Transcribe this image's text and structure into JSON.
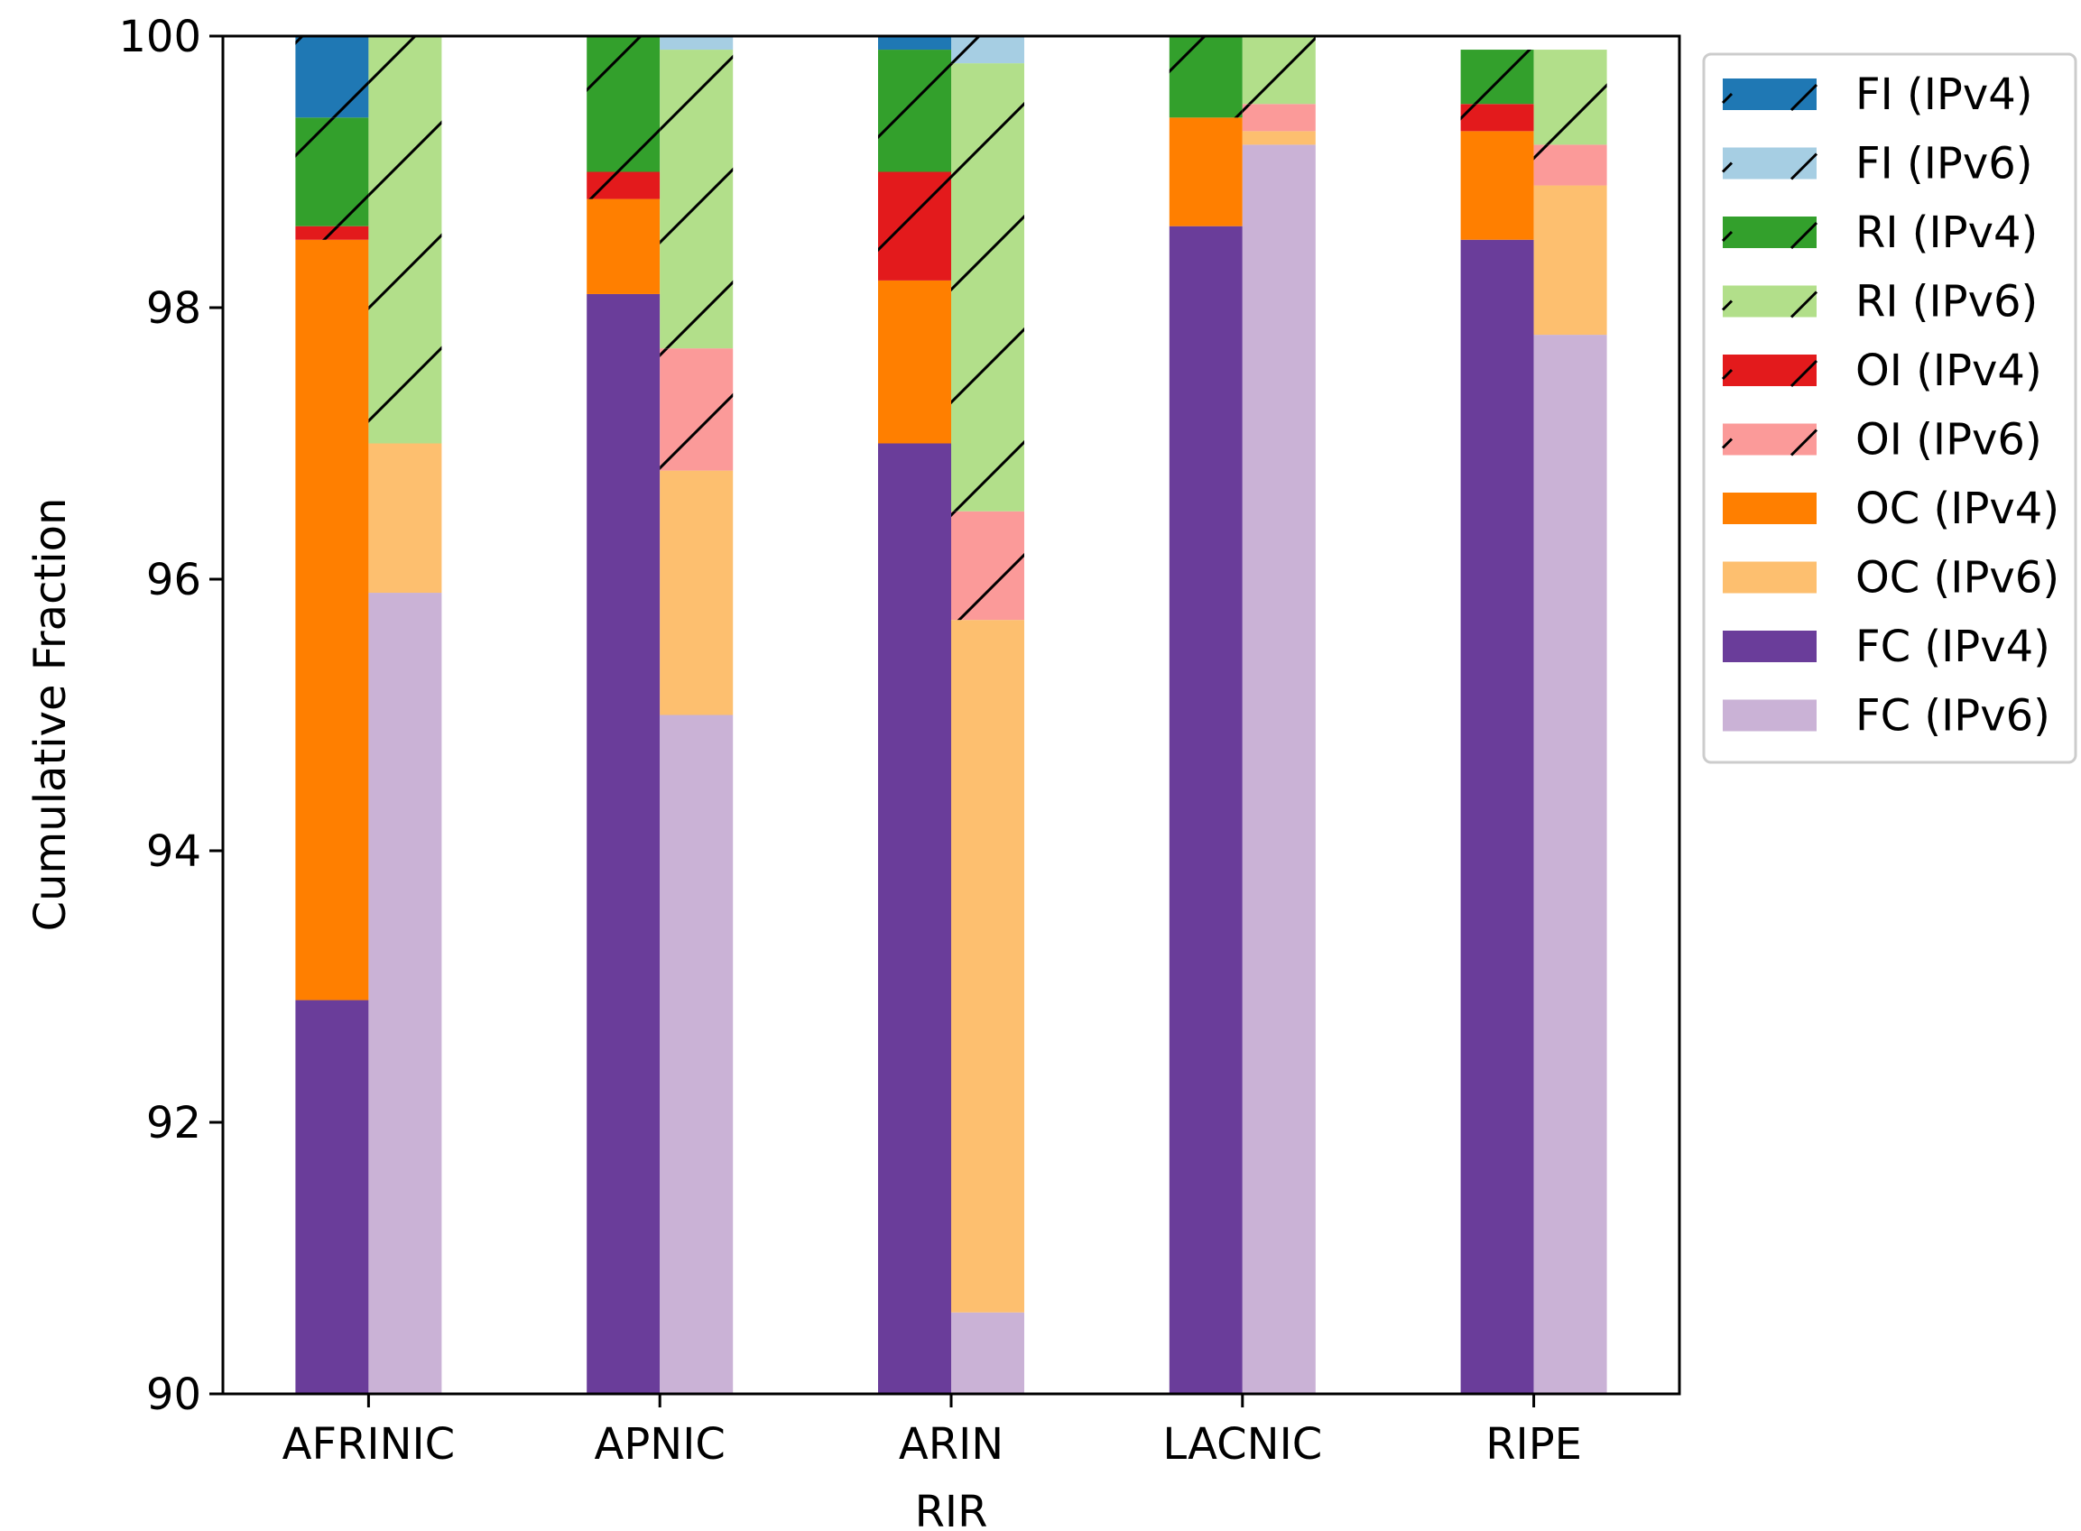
{
  "chart_data": {
    "type": "bar",
    "stacked": true,
    "grouped_by": "protocol",
    "title": "",
    "xlabel": "RIR",
    "ylabel": "Cumulative Fraction",
    "ylim": [
      90,
      100
    ],
    "yticks": [
      90,
      92,
      94,
      96,
      98,
      100
    ],
    "categories": [
      "AFRINIC",
      "APNIC",
      "ARIN",
      "LACNIC",
      "RIPE"
    ],
    "legend_position": "upper right, outside plot area",
    "grid": false,
    "groups": [
      "IPv4",
      "IPv6"
    ],
    "series": [
      {
        "name": "FC (IPv4)",
        "group": "IPv4",
        "color": "#6a3d9a",
        "hatch": false,
        "values": [
          92.9,
          98.1,
          97.0,
          98.6,
          98.5
        ]
      },
      {
        "name": "OC (IPv4)",
        "group": "IPv4",
        "color": "#ff7f00",
        "hatch": false,
        "values": [
          5.6,
          0.7,
          1.2,
          0.8,
          0.8
        ]
      },
      {
        "name": "OI (IPv4)",
        "group": "IPv4",
        "color": "#e31a1c",
        "hatch": true,
        "values": [
          0.1,
          0.2,
          0.8,
          0.0,
          0.2
        ]
      },
      {
        "name": "RI (IPv4)",
        "group": "IPv4",
        "color": "#33a02c",
        "hatch": true,
        "values": [
          0.8,
          1.0,
          0.9,
          0.6,
          0.4
        ]
      },
      {
        "name": "FI (IPv4)",
        "group": "IPv4",
        "color": "#1f78b4",
        "hatch": true,
        "values": [
          0.6,
          0.0,
          0.1,
          0.0,
          0.0
        ]
      },
      {
        "name": "FC (IPv6)",
        "group": "IPv6",
        "color": "#cab2d6",
        "hatch": false,
        "values": [
          95.9,
          95.0,
          90.6,
          99.2,
          97.8
        ]
      },
      {
        "name": "OC (IPv6)",
        "group": "IPv6",
        "color": "#fdbf6f",
        "hatch": false,
        "values": [
          1.1,
          1.8,
          5.1,
          0.1,
          1.1
        ]
      },
      {
        "name": "OI (IPv6)",
        "group": "IPv6",
        "color": "#fb9a99",
        "hatch": true,
        "values": [
          0.0,
          0.9,
          0.8,
          0.2,
          0.3
        ]
      },
      {
        "name": "RI (IPv6)",
        "group": "IPv6",
        "color": "#b2df8a",
        "hatch": true,
        "values": [
          3.0,
          2.2,
          3.3,
          0.5,
          0.7
        ]
      },
      {
        "name": "FI (IPv6)",
        "group": "IPv6",
        "color": "#a6cee3",
        "hatch": true,
        "values": [
          0.0,
          0.1,
          0.2,
          0.0,
          0.0
        ]
      }
    ],
    "legend": [
      {
        "label": "FI (IPv4)",
        "color": "#1f78b4",
        "hatch": true
      },
      {
        "label": "FI (IPv6)",
        "color": "#a6cee3",
        "hatch": true
      },
      {
        "label": "RI (IPv4)",
        "color": "#33a02c",
        "hatch": true
      },
      {
        "label": "RI (IPv6)",
        "color": "#b2df8a",
        "hatch": true
      },
      {
        "label": "OI (IPv4)",
        "color": "#e31a1c",
        "hatch": true
      },
      {
        "label": "OI (IPv6)",
        "color": "#fb9a99",
        "hatch": true
      },
      {
        "label": "OC (IPv4)",
        "color": "#ff7f00",
        "hatch": false
      },
      {
        "label": "OC (IPv6)",
        "color": "#fdbf6f",
        "hatch": false
      },
      {
        "label": "FC (IPv4)",
        "color": "#6a3d9a",
        "hatch": false
      },
      {
        "label": "FC (IPv6)",
        "color": "#cab2d6",
        "hatch": false
      }
    ]
  }
}
